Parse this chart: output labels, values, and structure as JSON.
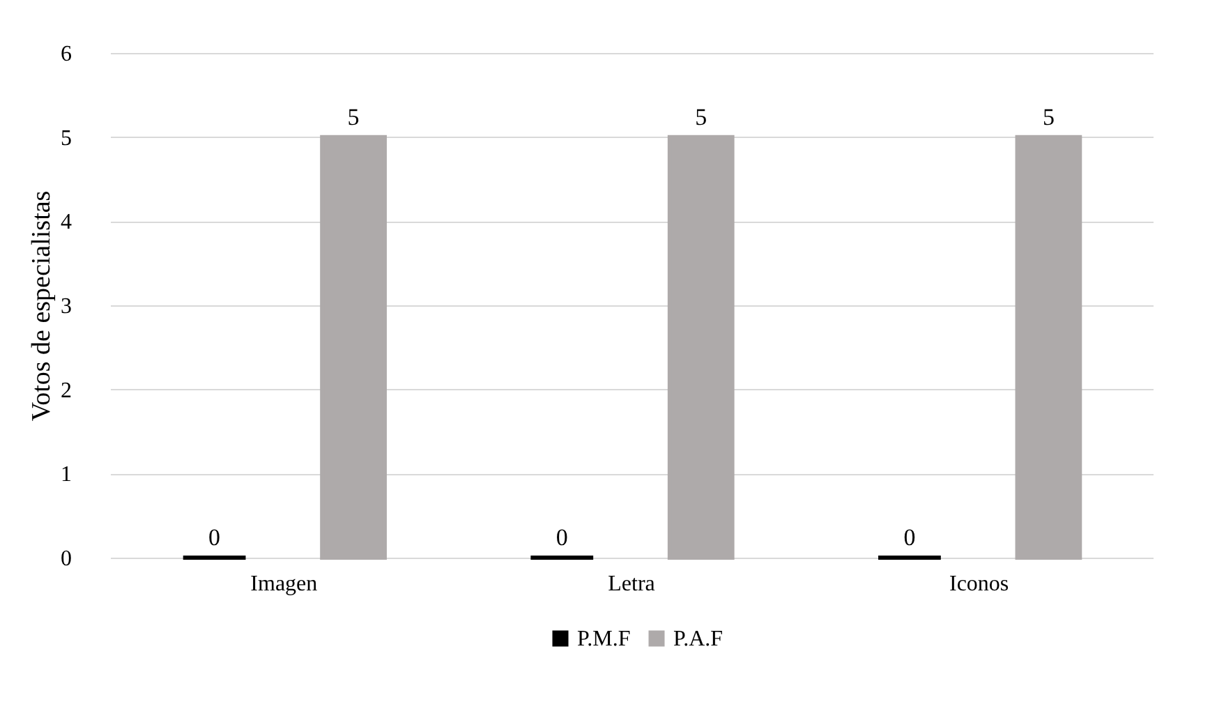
{
  "chart_data": {
    "type": "bar",
    "ylabel": "Votos de especialistas",
    "categories": [
      "Imagen",
      "Letra",
      "Iconos"
    ],
    "series": [
      {
        "name": "P.M.F",
        "color": "#000000",
        "values": [
          0,
          0,
          0
        ]
      },
      {
        "name": "P.A.F",
        "color": "#aeaaaa",
        "values": [
          5,
          5,
          5
        ]
      }
    ],
    "ylim": [
      0,
      6
    ],
    "yticks": [
      0,
      1,
      2,
      3,
      4,
      5,
      6
    ],
    "grid": "y",
    "legend": "bottom",
    "data_labels": true
  }
}
